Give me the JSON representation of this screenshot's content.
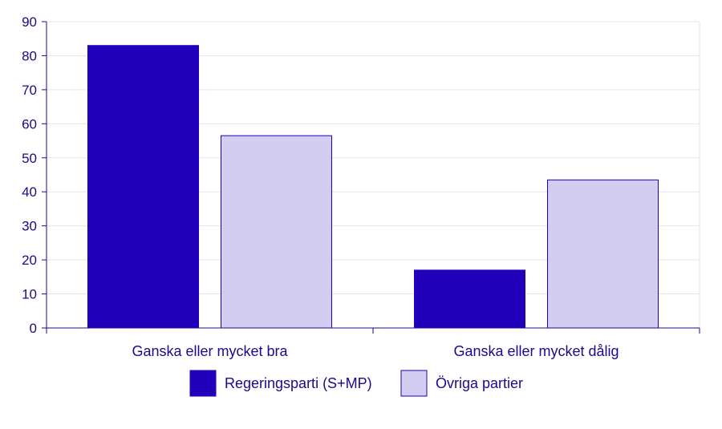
{
  "chart_data": {
    "type": "bar",
    "title": "",
    "xlabel": "",
    "ylabel": "",
    "ylim": [
      0,
      90
    ],
    "yticks": [
      0,
      10,
      20,
      30,
      40,
      50,
      60,
      70,
      80,
      90
    ],
    "grid": true,
    "legend_position": "bottom-center",
    "categories": [
      "Ganska eller mycket bra",
      "Ganska eller mycket dålig"
    ],
    "series": [
      {
        "name": "Regeringsparti (S+MP)",
        "values": [
          83,
          17
        ],
        "color": "#2200bb"
      },
      {
        "name": "Övriga partier",
        "values": [
          56.5,
          43.5
        ],
        "color": "#d3cdf2"
      }
    ],
    "axis_color": "#1a0a8c",
    "grid_color": "#e6e3f4",
    "bar_stroke_color": "#2200bb"
  }
}
